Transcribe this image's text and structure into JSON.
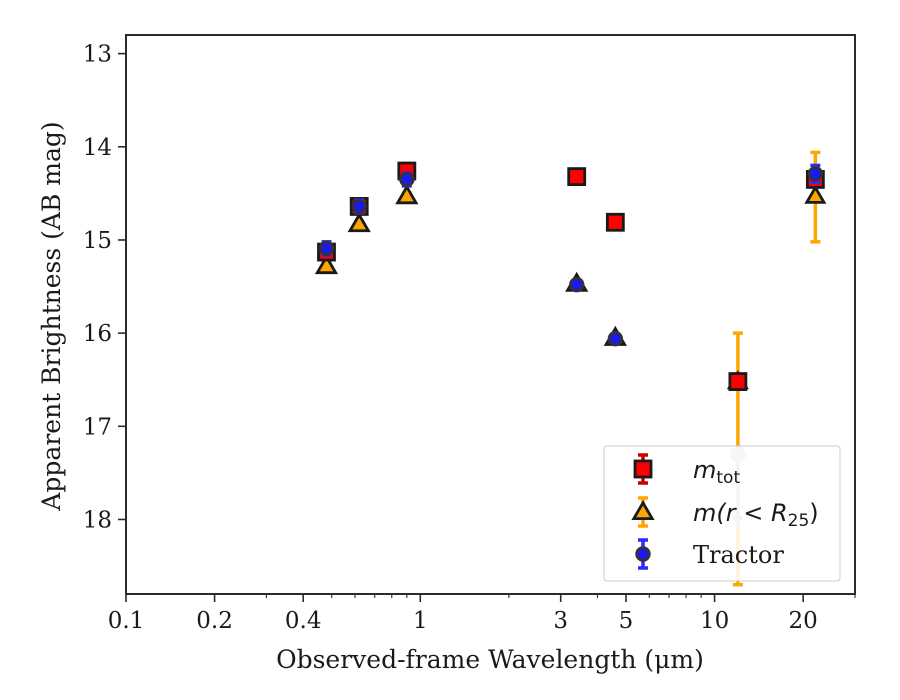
{
  "chart_data": {
    "type": "scatter",
    "xlabel": "Observed-frame Wavelength (μm)",
    "ylabel": "Apparent Brightness (AB mag)",
    "x_scale": "log",
    "xlim": [
      0.1,
      30
    ],
    "ylim": [
      18.8,
      12.8
    ],
    "y_inverted": true,
    "x_ticks": [
      0.1,
      0.2,
      0.4,
      1,
      3,
      5,
      10,
      20
    ],
    "x_tick_labels": [
      "0.1",
      "0.2",
      "0.4",
      "1",
      "3",
      "5",
      "10",
      "20"
    ],
    "y_ticks": [
      13,
      14,
      15,
      16,
      17,
      18
    ],
    "y_tick_labels": [
      "13",
      "14",
      "15",
      "16",
      "17",
      "18"
    ],
    "grid": false,
    "legend_position": "lower-right",
    "series": [
      {
        "name": "m_tot",
        "legend_main": "m",
        "legend_sub": "tot",
        "marker": "square",
        "color": "#ff0000",
        "edge": "#1a1a1a",
        "errcolor": "#cc0000",
        "points": [
          {
            "x": 0.48,
            "y": 15.13,
            "err": 0.08
          },
          {
            "x": 0.62,
            "y": 14.64,
            "err": 0.08
          },
          {
            "x": 0.9,
            "y": 14.26,
            "err": 0.08
          },
          {
            "x": 3.4,
            "y": 14.32,
            "err": 0.05
          },
          {
            "x": 4.6,
            "y": 14.81,
            "err": 0.05
          },
          {
            "x": 12.0,
            "y": 16.52,
            "err": 0.08
          },
          {
            "x": 22.0,
            "y": 14.35,
            "err": 0.08
          }
        ]
      },
      {
        "name": "m(r < R_25)",
        "legend_main": "m(r < R",
        "legend_sub": "25",
        "legend_tail": ")",
        "marker": "triangle",
        "color": "#ffa500",
        "edge": "#1a1a1a",
        "errcolor": "#ffa500",
        "points": [
          {
            "x": 0.48,
            "y": 15.28,
            "err": 0.03
          },
          {
            "x": 0.62,
            "y": 14.83,
            "err": 0.03
          },
          {
            "x": 0.9,
            "y": 14.53,
            "err": 0.03
          },
          {
            "x": 3.4,
            "y": 15.47,
            "err": 0.04
          },
          {
            "x": 4.6,
            "y": 16.05,
            "err": 0.04
          },
          {
            "x": 12.0,
            "y": 16.52,
            "err": 0.0,
            "err_low": 16.0,
            "err_high": 18.7
          },
          {
            "x": 22.0,
            "y": 14.53,
            "err": 0.0,
            "err_low": 14.06,
            "err_high": 15.02
          }
        ]
      },
      {
        "name": "Tractor",
        "marker": "circle",
        "color": "#1a1aee",
        "edge": "#333333",
        "errcolor": "#2b2bff",
        "points": [
          {
            "x": 0.48,
            "y": 15.09,
            "err": 0.07
          },
          {
            "x": 0.62,
            "y": 14.64,
            "err": 0.07
          },
          {
            "x": 0.9,
            "y": 14.35,
            "err": 0.07
          },
          {
            "x": 3.4,
            "y": 15.48,
            "err": 0.03
          },
          {
            "x": 4.6,
            "y": 16.06,
            "err": 0.03
          },
          {
            "x": 22.0,
            "y": 14.29,
            "err": 0.09
          }
        ],
        "upper_limit": {
          "x": 12.0,
          "y": 17.3,
          "arrow_to": 18.05,
          "color": "#b0b0e8"
        }
      }
    ]
  }
}
